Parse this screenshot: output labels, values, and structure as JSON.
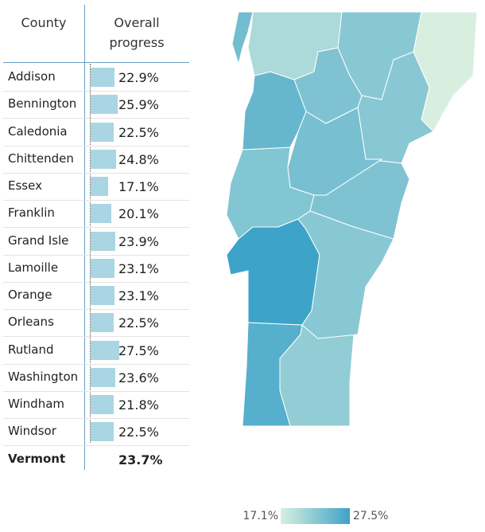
{
  "table": {
    "header": {
      "county": "County",
      "progress": "Overall progress"
    },
    "rows": [
      {
        "name": "Addison",
        "value": 22.9,
        "label": "22.9%"
      },
      {
        "name": "Bennington",
        "value": 25.9,
        "label": "25.9%"
      },
      {
        "name": "Caledonia",
        "value": 22.5,
        "label": "22.5%"
      },
      {
        "name": "Chittenden",
        "value": 24.8,
        "label": "24.8%"
      },
      {
        "name": "Essex",
        "value": 17.1,
        "label": "17.1%"
      },
      {
        "name": "Franklin",
        "value": 20.1,
        "label": "20.1%"
      },
      {
        "name": "Grand Isle",
        "value": 23.9,
        "label": "23.9%"
      },
      {
        "name": "Lamoille",
        "value": 23.1,
        "label": "23.1%"
      },
      {
        "name": "Orange",
        "value": 23.1,
        "label": "23.1%"
      },
      {
        "name": "Orleans",
        "value": 22.5,
        "label": "22.5%"
      },
      {
        "name": "Rutland",
        "value": 27.5,
        "label": "27.5%"
      },
      {
        "name": "Washington",
        "value": 23.6,
        "label": "23.6%"
      },
      {
        "name": "Windham",
        "value": 21.8,
        "label": "21.8%"
      },
      {
        "name": "Windsor",
        "value": 22.5,
        "label": "22.5%"
      }
    ],
    "total": {
      "name": "Vermont",
      "value": 23.7,
      "label": "23.7%"
    }
  },
  "legend": {
    "min": {
      "value": 17.1,
      "label": "17.1%",
      "color": "#d8efe0"
    },
    "max": {
      "value": 27.5,
      "label": "27.5%",
      "color": "#3ea3c8"
    }
  }
}
